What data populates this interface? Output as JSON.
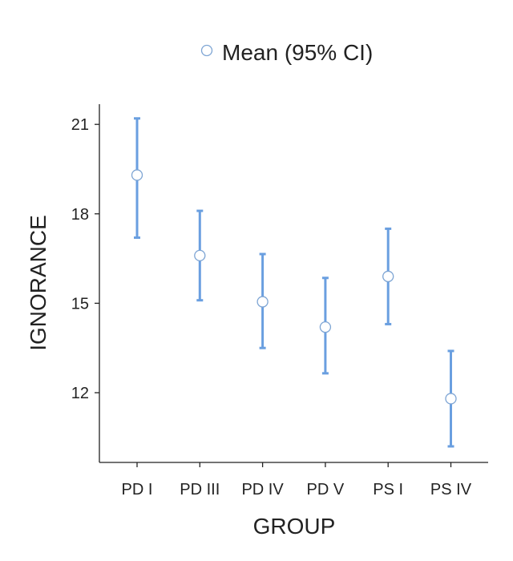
{
  "chart_data": {
    "type": "scatter",
    "subtype": "error-bar",
    "xlabel": "GROUP",
    "ylabel": "IGNORANCE",
    "categories": [
      "PD I",
      "PD III",
      "PD IV",
      "PD V",
      "PS I",
      "PS IV"
    ],
    "series": [
      {
        "name": "Mean (95% CI)",
        "mean": [
          19.3,
          16.6,
          15.05,
          14.2,
          15.9,
          11.8
        ],
        "ci_low": [
          17.2,
          15.1,
          13.5,
          12.65,
          14.3,
          10.2
        ],
        "ci_high": [
          21.2,
          18.1,
          16.65,
          15.85,
          17.5,
          13.4
        ]
      }
    ],
    "yticks": [
      12,
      15,
      18,
      21
    ],
    "ylim": [
      9.7,
      21.9
    ],
    "grid": false,
    "legend_position": "top-center",
    "colors": {
      "error_bar": "#6a9fe0",
      "marker_fill": "#ffffff",
      "marker_stroke": "#7ea5d4",
      "axis": "#222222"
    }
  }
}
